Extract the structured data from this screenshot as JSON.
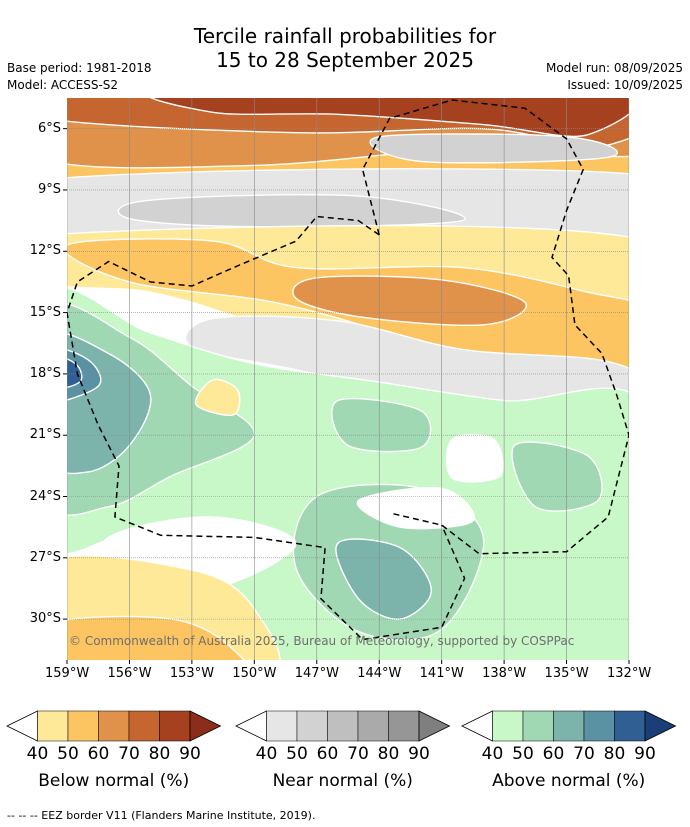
{
  "title": {
    "line1": "Tercile rainfall probabilities for",
    "line2": "15 to 28 September 2025"
  },
  "meta": {
    "base_period": "Base period: 1981-2018",
    "model": "Model: ACCESS-S2",
    "model_run": "Model run: 08/09/2025",
    "issued": "Issued: 10/09/2025"
  },
  "credit": "© Commonwealth of Australia 2025, Bureau of Meteorology, supported by COSPPac",
  "footnote": "--  --  -- EEZ border V11 (Flanders Marine Institute, 2019).",
  "colors": {
    "below": [
      "#fee999",
      "#fdc562",
      "#e0924a",
      "#c5652f",
      "#a6411f",
      "#8b2d1a"
    ],
    "near": [
      "#e6e6e6",
      "#d2d2d2",
      "#bfbfbf",
      "#aaaaaa",
      "#969696",
      "#7f7f7f"
    ],
    "above": [
      "#c8f8c8",
      "#a1d8b4",
      "#7cb4ab",
      "#5a91a3",
      "#2f5f93",
      "#1a3f78"
    ],
    "white": "#ffffff",
    "grid": "#8a8a8a",
    "eez": "#000000"
  },
  "chart_data": {
    "type": "heatmap",
    "title": "Tercile rainfall probabilities for 15 to 28 September 2025",
    "xlabel": "",
    "ylabel": "",
    "xlim": [
      -159,
      -132
    ],
    "ylim": [
      -32,
      -4.5
    ],
    "x_ticks": [
      "159°W",
      "156°W",
      "153°W",
      "150°W",
      "147°W",
      "144°W",
      "141°W",
      "138°W",
      "135°W",
      "132°W"
    ],
    "y_ticks": [
      "6°S",
      "9°S",
      "12°S",
      "15°S",
      "18°S",
      "21°S",
      "24°S",
      "27°S",
      "30°S"
    ],
    "grid": true,
    "legend_placement": "bottom",
    "categories": [
      "Below normal",
      "Near normal",
      "Above normal"
    ],
    "levels": [
      40,
      50,
      60,
      70,
      80,
      90
    ],
    "regions": [
      {
        "category": "below",
        "level": 70,
        "lat_range": [
          -5,
          -7
        ],
        "lon_range": [
          -159,
          -132
        ]
      },
      {
        "category": "below",
        "level": 50,
        "lat_range": [
          -7,
          -9
        ],
        "lon_range": [
          -159,
          -138
        ]
      },
      {
        "category": "near",
        "level": 40,
        "lat_range": [
          -8,
          -12
        ],
        "lon_range": [
          -159,
          -132
        ]
      },
      {
        "category": "below",
        "level": 50,
        "lat_range": [
          -12,
          -18
        ],
        "lon_range": [
          -150,
          -132
        ]
      },
      {
        "category": "near",
        "level": 40,
        "lat_range": [
          -15,
          -20
        ],
        "lon_range": [
          -152,
          -132
        ]
      },
      {
        "category": "above",
        "level": 70,
        "lat_range": [
          -16,
          -20
        ],
        "lon_range": [
          -159,
          -155
        ]
      },
      {
        "category": "above",
        "level": 50,
        "lat_range": [
          -18,
          -30
        ],
        "lon_range": [
          -157,
          -138
        ]
      },
      {
        "category": "above",
        "level": 60,
        "lat_range": [
          -26,
          -30
        ],
        "lon_range": [
          -147,
          -142
        ]
      },
      {
        "category": "below",
        "level": 40,
        "lat_range": [
          -27,
          -32
        ],
        "lon_range": [
          -159,
          -150
        ]
      }
    ]
  },
  "colorbars": [
    {
      "id": "below",
      "title": "Below normal (%)",
      "labels": [
        "40",
        "50",
        "60",
        "70",
        "80",
        "90"
      ]
    },
    {
      "id": "near",
      "title": "Near normal (%)",
      "labels": [
        "40",
        "50",
        "60",
        "70",
        "80",
        "90"
      ]
    },
    {
      "id": "above",
      "title": "Above normal (%)",
      "labels": [
        "40",
        "50",
        "60",
        "70",
        "80",
        "90"
      ]
    }
  ]
}
